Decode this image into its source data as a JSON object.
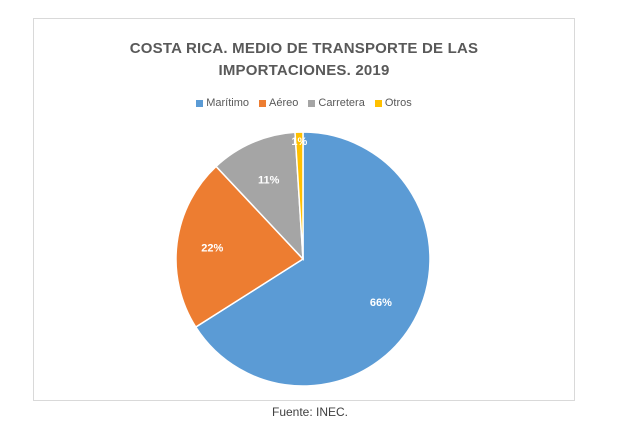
{
  "chart_data": {
    "type": "pie",
    "title_lines": [
      "COSTA RICA. MEDIO DE TRANSPORTE DE LAS",
      "IMPORTACIONES. 2019"
    ],
    "categories": [
      "Marítimo",
      "Aéreo",
      "Carretera",
      "Otros"
    ],
    "values": [
      66,
      22,
      11,
      1
    ],
    "labels": [
      "66%",
      "22%",
      "11%",
      "1%"
    ],
    "colors": [
      "#5b9bd5",
      "#ed7d31",
      "#a5a5a5",
      "#ffc000"
    ],
    "legend_position": "top"
  },
  "caption": "Fuente: INEC."
}
